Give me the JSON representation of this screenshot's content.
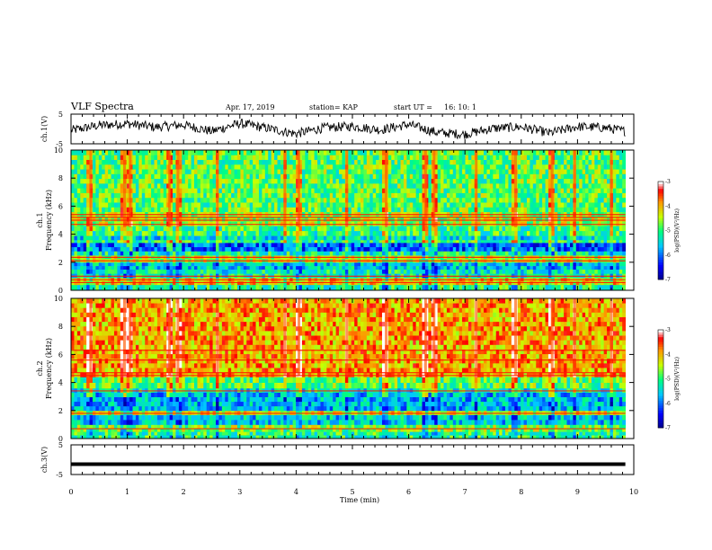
{
  "header": {
    "title": "VLF Spectra",
    "date": "Apr. 17, 2019",
    "station": "station= KAP",
    "start_label": "start UT =",
    "start_time": "16: 10: 1"
  },
  "colors": {
    "spectrogram_scale": [
      "#000000",
      "#0000ff",
      "#00c8ff",
      "#00ff80",
      "#ffff00",
      "#ff8000",
      "#ff0000",
      "#ffffff"
    ],
    "trace": "#000000"
  },
  "chart_data": [
    {
      "type": "line",
      "panel": "ch1-waveform",
      "ylabel": "ch.1(V)",
      "xlim": [
        0,
        9.85
      ],
      "ylim": [
        -5,
        5
      ],
      "yticks": [
        "5",
        "-5"
      ],
      "description_values": {
        "x": [
          0,
          0.5,
          1,
          1.5,
          2,
          2.5,
          3,
          3.5,
          4,
          4.5,
          5,
          5.5,
          6,
          6.5,
          7,
          7.5,
          8,
          8.5,
          9,
          9.5,
          9.8
        ],
        "y": [
          -0.5,
          1.2,
          1.8,
          0.6,
          1.4,
          -0.8,
          1.9,
          0.2,
          -1.6,
          0.4,
          0.9,
          -0.3,
          1.5,
          -1.2,
          -1.8,
          0.2,
          0.7,
          -1.4,
          0.8,
          0.4,
          -0.6
        ]
      }
    },
    {
      "type": "heatmap",
      "panel": "ch1-spectrogram",
      "ylabel": "ch.1\nFrequency (kHz)",
      "xlim": [
        0,
        9.85
      ],
      "ylim": [
        0,
        10
      ],
      "yticks": [
        "0",
        "2",
        "4",
        "6",
        "8",
        "10"
      ],
      "colorbar": {
        "label": "log(PSD)(V²/Hz)",
        "range": [
          -7,
          -3
        ],
        "ticks": [
          "-3",
          "-4",
          "-5",
          "-6",
          "-7"
        ]
      },
      "bands_khz": [
        {
          "low": 0.0,
          "high": 0.4,
          "level": -5.0
        },
        {
          "low": 0.4,
          "high": 0.9,
          "level": -4.1
        },
        {
          "low": 0.9,
          "high": 1.5,
          "level": -5.2
        },
        {
          "low": 1.5,
          "high": 2.0,
          "level": -5.5
        },
        {
          "low": 2.0,
          "high": 2.5,
          "level": -4.4
        },
        {
          "low": 2.5,
          "high": 2.8,
          "level": -5.2
        },
        {
          "low": 2.8,
          "high": 3.4,
          "level": -6.1
        },
        {
          "low": 3.4,
          "high": 3.6,
          "level": -5.0
        },
        {
          "low": 3.6,
          "high": 3.9,
          "level": -5.4
        },
        {
          "low": 3.9,
          "high": 4.6,
          "level": -5.0
        },
        {
          "low": 4.6,
          "high": 5.6,
          "level": -4.5
        },
        {
          "low": 5.6,
          "high": 10.0,
          "level": -4.8
        }
      ],
      "strong_lines_khz": [
        0.55,
        0.75,
        1.0,
        2.1,
        2.35,
        4.7,
        5.0,
        5.2,
        5.4
      ],
      "burst_times_min": [
        0.35,
        0.95,
        1.05,
        1.75,
        1.9,
        2.6,
        3.8,
        4.05,
        4.9,
        5.6,
        6.3,
        6.45,
        7.2,
        7.9,
        8.55,
        8.95,
        9.6
      ]
    },
    {
      "type": "heatmap",
      "panel": "ch2-spectrogram",
      "ylabel": "ch.2\nFrequency (kHz)",
      "xlim": [
        0,
        9.85
      ],
      "ylim": [
        0,
        10
      ],
      "yticks": [
        "0",
        "2",
        "4",
        "6",
        "8",
        "10"
      ],
      "colorbar": {
        "label": "log(PSD)(V²/Hz)",
        "range": [
          -7,
          -3
        ],
        "ticks": [
          "-3",
          "-4",
          "-5",
          "-6",
          "-7"
        ]
      },
      "bands_khz": [
        {
          "low": 0.0,
          "high": 0.5,
          "level": -5.0
        },
        {
          "low": 0.5,
          "high": 1.0,
          "level": -4.6
        },
        {
          "low": 1.0,
          "high": 1.7,
          "level": -5.5
        },
        {
          "low": 1.7,
          "high": 2.0,
          "level": -4.3
        },
        {
          "low": 2.0,
          "high": 3.3,
          "level": -5.6
        },
        {
          "low": 3.3,
          "high": 3.6,
          "level": -5.3
        },
        {
          "low": 3.6,
          "high": 4.4,
          "level": -4.8
        },
        {
          "low": 4.4,
          "high": 10.0,
          "level": -3.9
        }
      ],
      "strong_lines_khz": [
        0.7,
        1.8,
        3.4,
        4.5,
        4.7,
        5.6,
        6.3
      ],
      "burst_times_min": [
        0.35,
        0.95,
        1.05,
        1.75,
        1.9,
        2.6,
        3.8,
        4.05,
        4.9,
        5.6,
        6.3,
        6.45,
        7.2,
        7.9,
        8.55,
        8.95,
        9.6
      ]
    },
    {
      "type": "line",
      "panel": "ch3-waveform",
      "ylabel": "ch.3(V)",
      "xlabel": "Time (min)",
      "xlim": [
        0,
        10
      ],
      "xticks": [
        "0",
        "1",
        "2",
        "3",
        "4",
        "5",
        "6",
        "7",
        "8",
        "9",
        "10"
      ],
      "ylim": [
        -5,
        5
      ],
      "yticks": [
        "5",
        "-5"
      ],
      "x": [
        0,
        9.85
      ],
      "y": [
        -1.5,
        -1.5
      ]
    }
  ]
}
